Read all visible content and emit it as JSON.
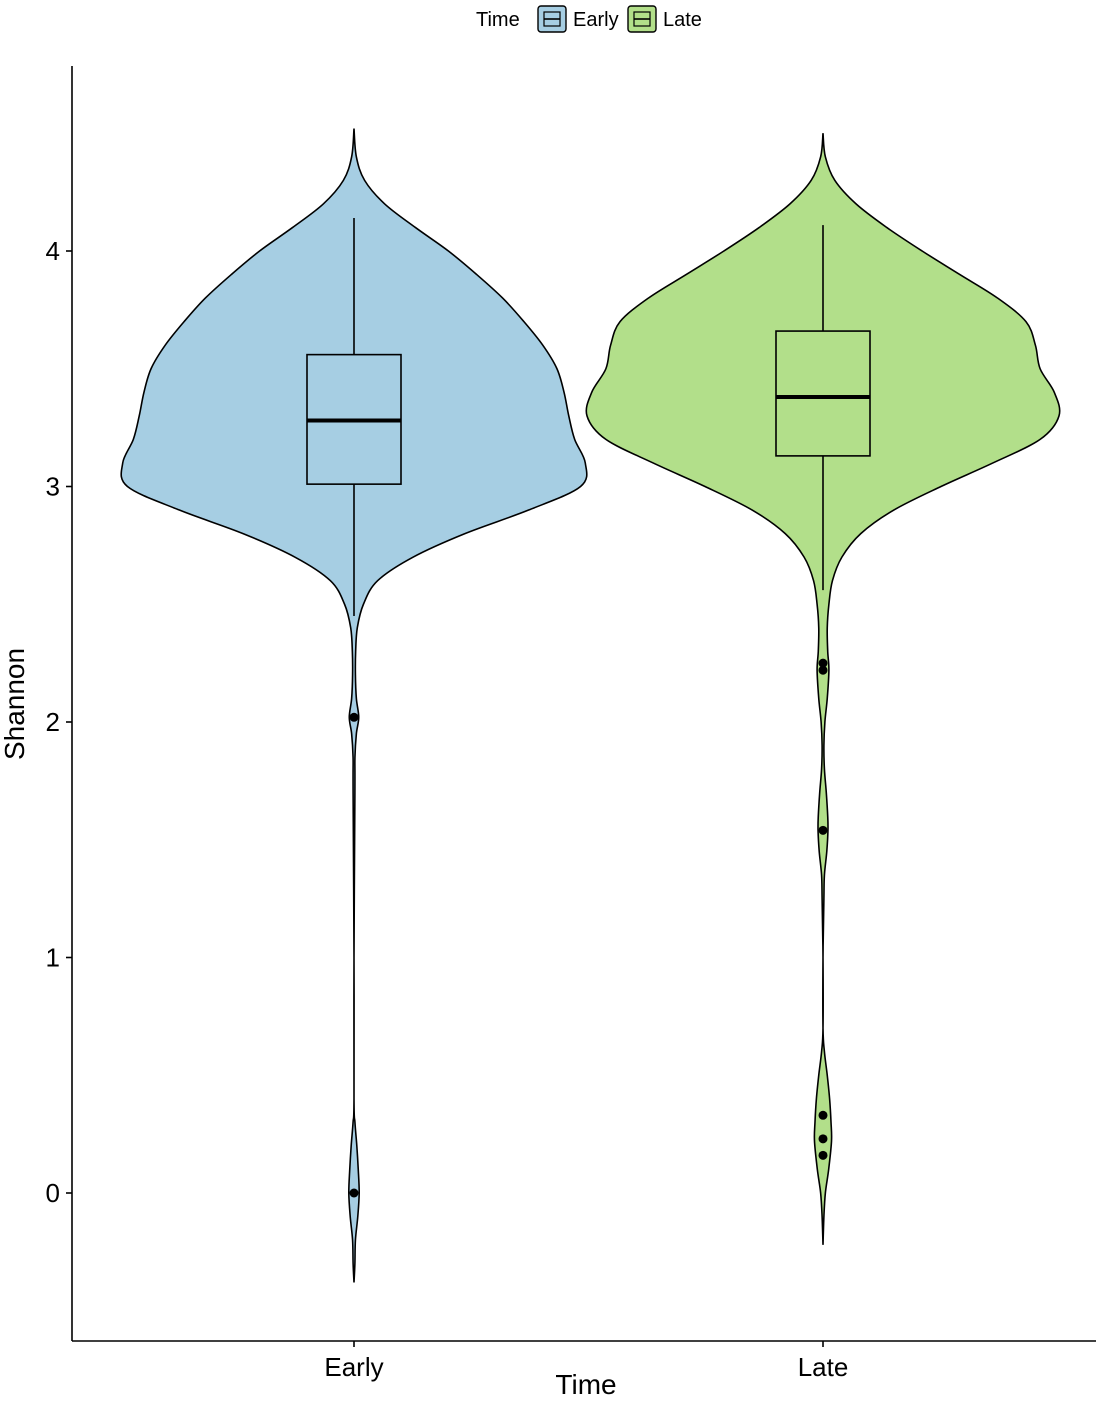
{
  "chart_data": {
    "type": "violin",
    "xlabel": "Time",
    "ylabel": "Shannon",
    "ylim": [
      -0.6,
      4.6
    ],
    "y_ticks": [
      0,
      1,
      2,
      3,
      4
    ],
    "categories": [
      "Early",
      "Late"
    ],
    "legend": {
      "title": "Time",
      "position": "top",
      "entries": [
        {
          "label": "Early",
          "color": "#a6cee3"
        },
        {
          "label": "Late",
          "color": "#b2df8a"
        }
      ]
    },
    "grid": false,
    "series": [
      {
        "name": "Early",
        "color": "#a6cee3",
        "box": {
          "whisker_low": 2.45,
          "q1": 3.01,
          "median": 3.28,
          "q3": 3.56,
          "whisker_high": 4.14
        },
        "outliers": [
          2.02,
          0.0
        ],
        "violin_range": [
          -0.38,
          4.52
        ],
        "density_profile": [
          [
            4.52,
            0.0
          ],
          [
            4.4,
            0.01
          ],
          [
            4.3,
            0.045
          ],
          [
            4.2,
            0.13
          ],
          [
            4.1,
            0.26
          ],
          [
            4.0,
            0.4
          ],
          [
            3.9,
            0.52
          ],
          [
            3.8,
            0.63
          ],
          [
            3.7,
            0.72
          ],
          [
            3.6,
            0.8
          ],
          [
            3.5,
            0.86
          ],
          [
            3.4,
            0.89
          ],
          [
            3.3,
            0.91
          ],
          [
            3.2,
            0.935
          ],
          [
            3.1,
            0.98
          ],
          [
            3.0,
            0.96
          ],
          [
            2.9,
            0.74
          ],
          [
            2.8,
            0.47
          ],
          [
            2.7,
            0.25
          ],
          [
            2.6,
            0.1
          ],
          [
            2.5,
            0.04
          ],
          [
            2.4,
            0.014
          ],
          [
            2.3,
            0.007
          ],
          [
            2.2,
            0.006
          ],
          [
            2.1,
            0.01
          ],
          [
            2.02,
            0.02
          ],
          [
            1.95,
            0.01
          ],
          [
            1.85,
            0.004
          ],
          [
            1.7,
            0.001
          ],
          [
            1.0,
            0.0
          ],
          [
            0.4,
            0.0
          ],
          [
            0.3,
            0.004
          ],
          [
            0.2,
            0.012
          ],
          [
            0.1,
            0.018
          ],
          [
            0.0,
            0.022
          ],
          [
            -0.1,
            0.016
          ],
          [
            -0.2,
            0.006
          ],
          [
            -0.3,
            0.002
          ],
          [
            -0.38,
            0.0
          ]
        ]
      },
      {
        "name": "Late",
        "color": "#b2df8a",
        "box": {
          "whisker_low": 2.56,
          "q1": 3.13,
          "median": 3.38,
          "q3": 3.66,
          "whisker_high": 4.11
        },
        "outliers": [
          2.25,
          2.22,
          1.54,
          0.33,
          0.23,
          0.16
        ],
        "violin_range": [
          -0.22,
          4.5
        ],
        "density_profile": [
          [
            4.5,
            0.0
          ],
          [
            4.4,
            0.01
          ],
          [
            4.3,
            0.05
          ],
          [
            4.2,
            0.14
          ],
          [
            4.1,
            0.27
          ],
          [
            4.0,
            0.42
          ],
          [
            3.9,
            0.58
          ],
          [
            3.8,
            0.74
          ],
          [
            3.7,
            0.86
          ],
          [
            3.6,
            0.9
          ],
          [
            3.5,
            0.92
          ],
          [
            3.4,
            0.98
          ],
          [
            3.3,
            1.0
          ],
          [
            3.2,
            0.92
          ],
          [
            3.1,
            0.72
          ],
          [
            3.0,
            0.5
          ],
          [
            2.9,
            0.3
          ],
          [
            2.8,
            0.16
          ],
          [
            2.7,
            0.08
          ],
          [
            2.6,
            0.04
          ],
          [
            2.5,
            0.025
          ],
          [
            2.4,
            0.018
          ],
          [
            2.3,
            0.02
          ],
          [
            2.22,
            0.025
          ],
          [
            2.1,
            0.018
          ],
          [
            2.0,
            0.008
          ],
          [
            1.9,
            0.003
          ],
          [
            1.8,
            0.006
          ],
          [
            1.7,
            0.014
          ],
          [
            1.6,
            0.02
          ],
          [
            1.54,
            0.021
          ],
          [
            1.45,
            0.016
          ],
          [
            1.35,
            0.006
          ],
          [
            1.25,
            0.002
          ],
          [
            1.0,
            0.0
          ],
          [
            0.7,
            0.0
          ],
          [
            0.6,
            0.006
          ],
          [
            0.5,
            0.018
          ],
          [
            0.4,
            0.028
          ],
          [
            0.3,
            0.034
          ],
          [
            0.22,
            0.036
          ],
          [
            0.1,
            0.024
          ],
          [
            0.0,
            0.01
          ],
          [
            -0.1,
            0.003
          ],
          [
            -0.22,
            0.0
          ]
        ]
      }
    ]
  }
}
